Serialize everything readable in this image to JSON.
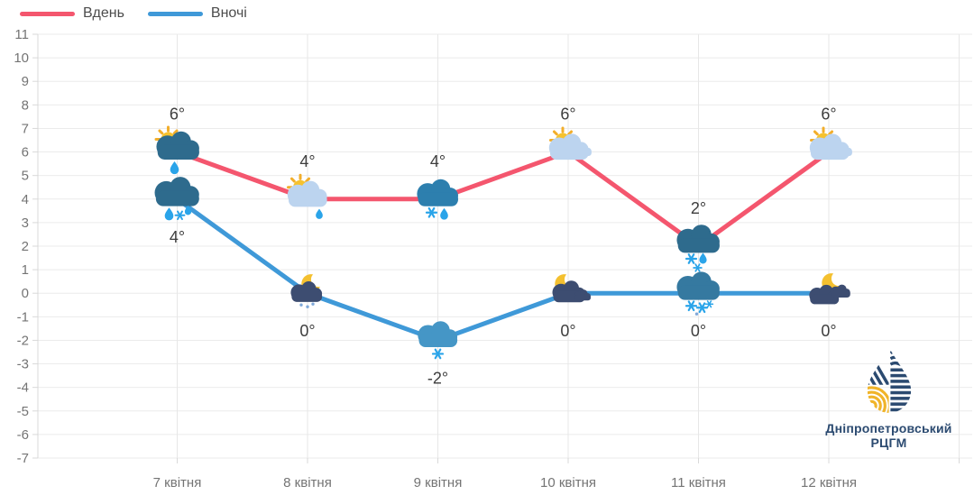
{
  "chart_data": {
    "type": "line",
    "title": "",
    "categories": [
      "7 квітня",
      "8 квітня",
      "9 квітня",
      "10 квітня",
      "11 квітня",
      "12 квітня"
    ],
    "series": [
      {
        "name": "Вдень",
        "color": "#f4566e",
        "values": [
          6,
          4,
          4,
          6,
          2,
          6
        ],
        "point_labels": [
          "6°",
          "4°",
          "4°",
          "6°",
          "2°",
          "6°"
        ],
        "icons": [
          "sun-rain-cloud",
          "sun-cloud-rain",
          "cloud-sleet",
          "sun-cloud",
          "cloud-sleet-snow",
          "sun-cloud"
        ]
      },
      {
        "name": "Вночі",
        "color": "#3f99d8",
        "values": [
          4,
          0,
          -2,
          0,
          0,
          0
        ],
        "point_labels": [
          "4°",
          "0°",
          "-2°",
          "0°",
          "0°",
          "0°"
        ],
        "icons": [
          "cloud-rain-sleet",
          "moon-cloud-snow",
          "cloud-snow",
          "moon-cloud",
          "cloud-snow-flurries",
          "moon-clouds"
        ]
      }
    ],
    "ylim": [
      -7,
      11
    ],
    "ytick_step": 1,
    "grid": true,
    "legend_position": "top-left",
    "xlabel": "",
    "ylabel": ""
  },
  "logo": {
    "org_line1": "Дніпропетровський",
    "org_line2": "РЦГМ"
  },
  "colors": {
    "background": "#ffffff",
    "grid": "#ebebeb",
    "axis": "#d9d9d9",
    "tick_text": "#747474",
    "point_label": "#3d3d3d",
    "legend_text": "#4c4c4c",
    "logo_navy": "#2b4a70",
    "logo_yellow": "#f0b429"
  }
}
